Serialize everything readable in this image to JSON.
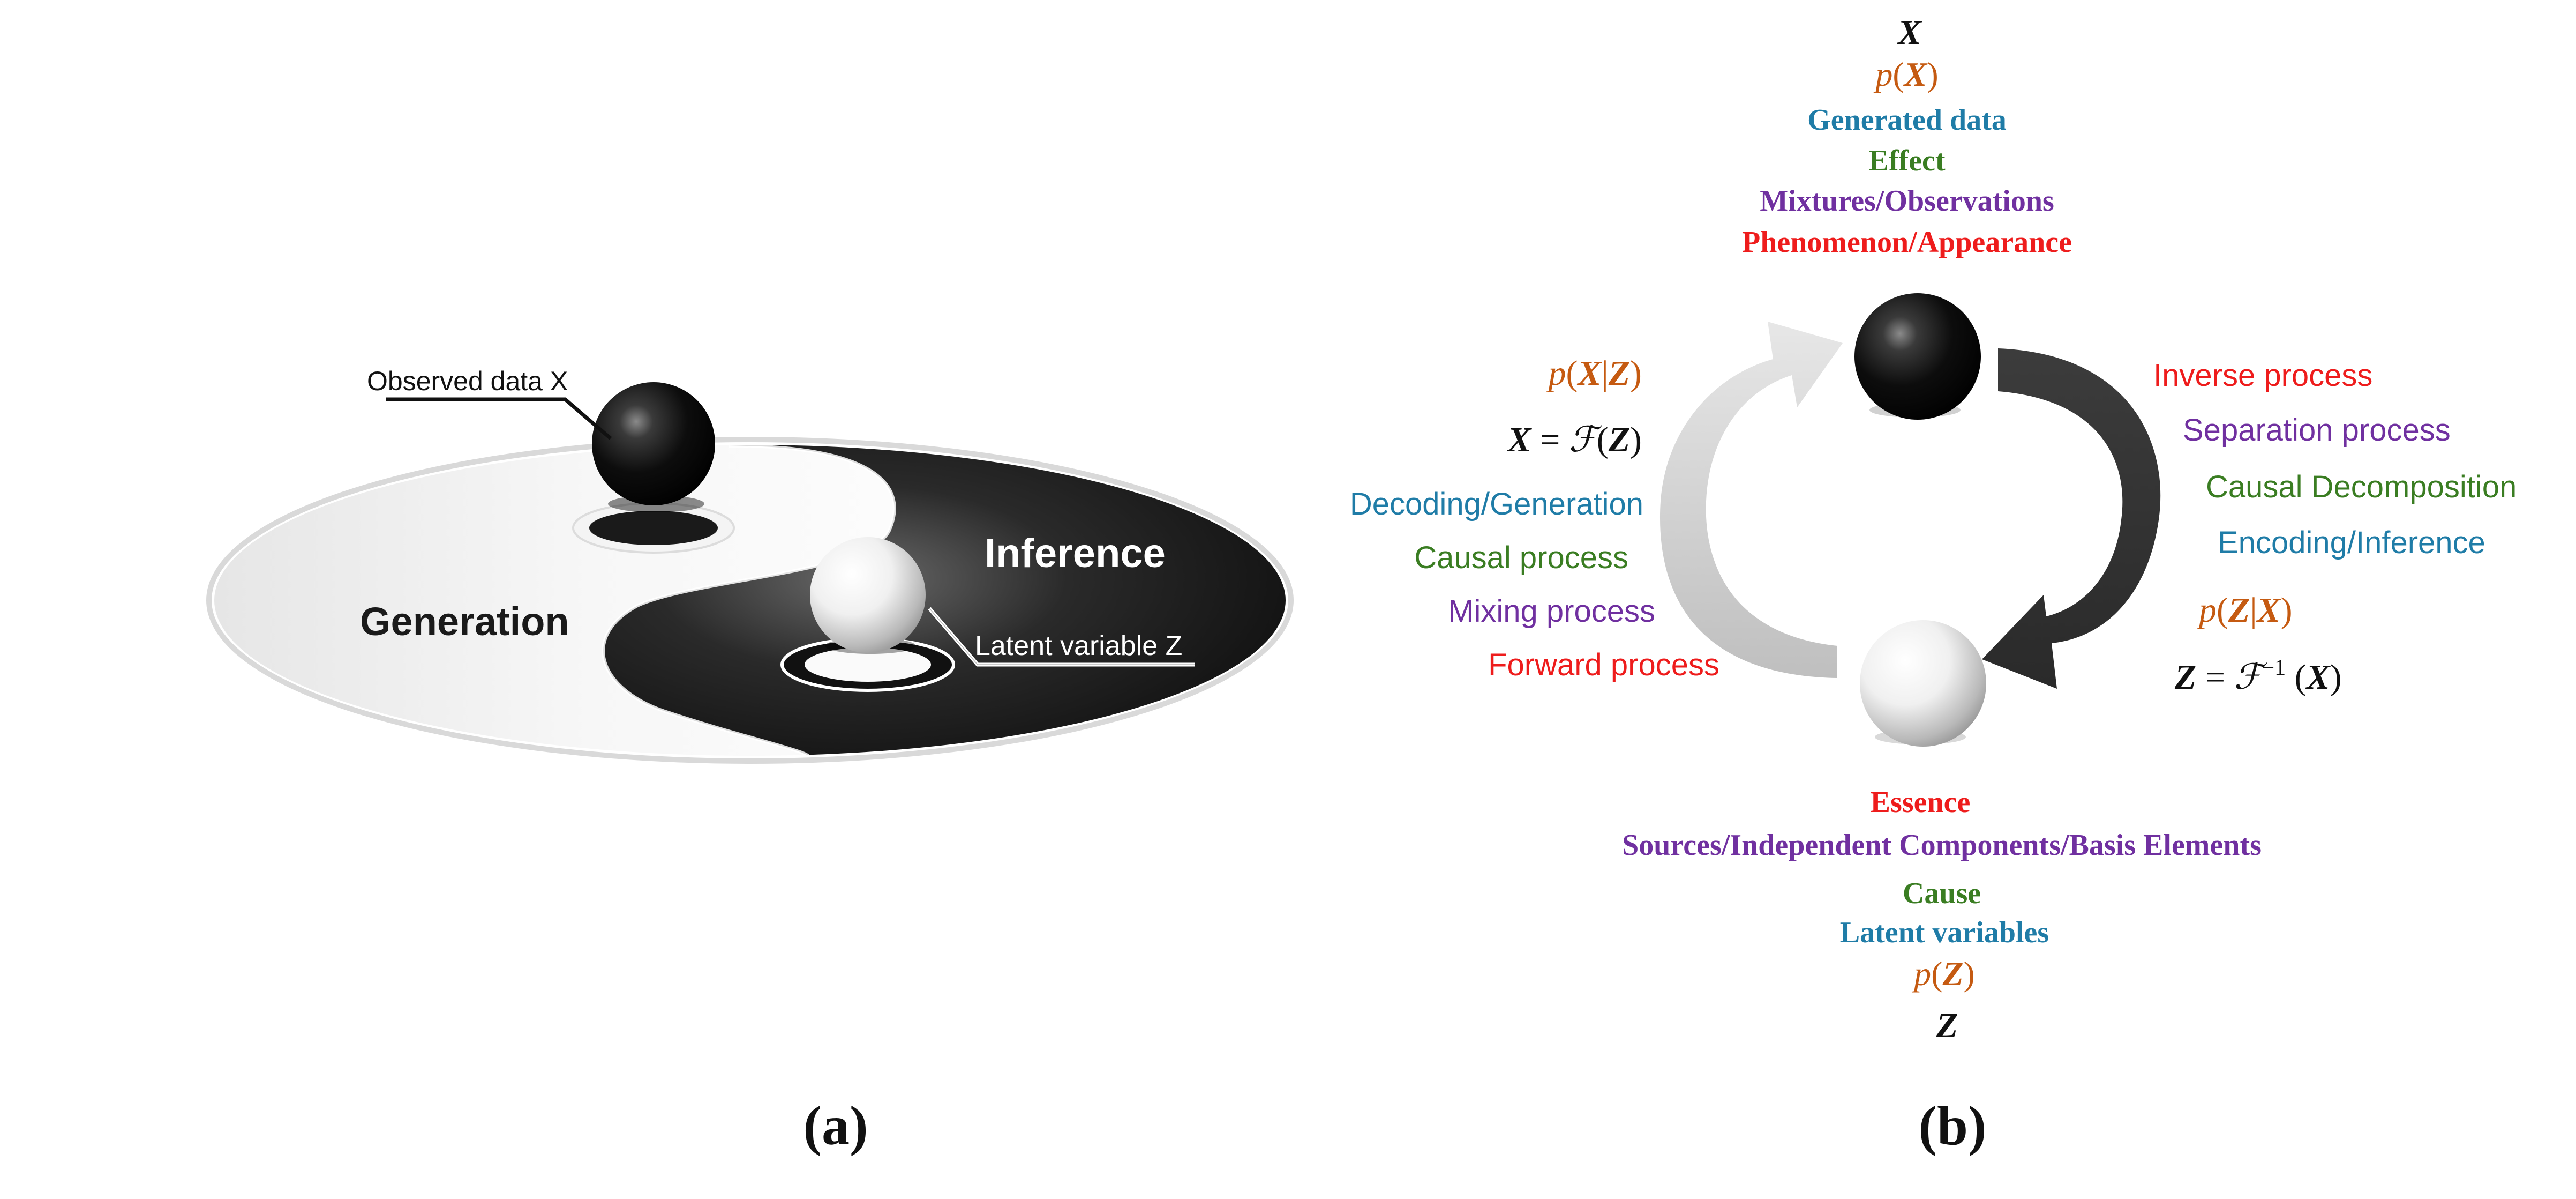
{
  "colors": {
    "red": "#ee1c1c",
    "purple": "#7030a0",
    "green": "#3a7d22",
    "blue": "#1f7ca7",
    "orange": "#c55a11",
    "black": "#111111"
  },
  "panel_a": {
    "observed_label": "Observed data X",
    "latent_label": "Latent variable Z",
    "generation_label": "Generation",
    "inference_label": "Inference",
    "caption": "(a)"
  },
  "panel_b": {
    "top": {
      "x_symbol": "X",
      "p_x": {
        "p": "p",
        "open": "(",
        "var": "X",
        "close": ")"
      },
      "generated_data": "Generated data",
      "effect": "Effect",
      "mixtures": "Mixtures/Observations",
      "phenomenon": "Phenomenon/Appearance"
    },
    "left": {
      "p_x_given_z": {
        "p": "p",
        "open": "(",
        "x": "X",
        "bar": "|",
        "z": "Z",
        "close": ")"
      },
      "forward_eq": {
        "lhs": "X",
        "eq": " = ",
        "f": "ℱ",
        "open": "(",
        "z": "Z",
        "close": ")"
      },
      "decoding": "Decoding/Generation",
      "causal_process": "Causal process",
      "mixing_process": "Mixing process",
      "forward_process": "Forward process"
    },
    "right": {
      "inverse_process": "Inverse process",
      "separation_process": "Separation process",
      "causal_decomposition": "Causal Decomposition",
      "encoding": "Encoding/Inference",
      "p_z_given_x": {
        "p": "p",
        "open": "(",
        "z": "Z",
        "bar": "|",
        "x": "X",
        "close": ")"
      },
      "inverse_eq": {
        "lhs": "Z",
        "eq": " = ",
        "f": "ℱ",
        "sup": "−1",
        "open": " (",
        "x": "X",
        "close": ")"
      }
    },
    "bottom": {
      "essence": "Essence",
      "sources": "Sources/Independent Components/Basis Elements",
      "cause": "Cause",
      "latent_variables": "Latent variables",
      "p_z": {
        "p": "p",
        "open": "(",
        "var": "Z",
        "close": ")"
      },
      "z_symbol": "Z"
    },
    "caption": "(b)"
  }
}
